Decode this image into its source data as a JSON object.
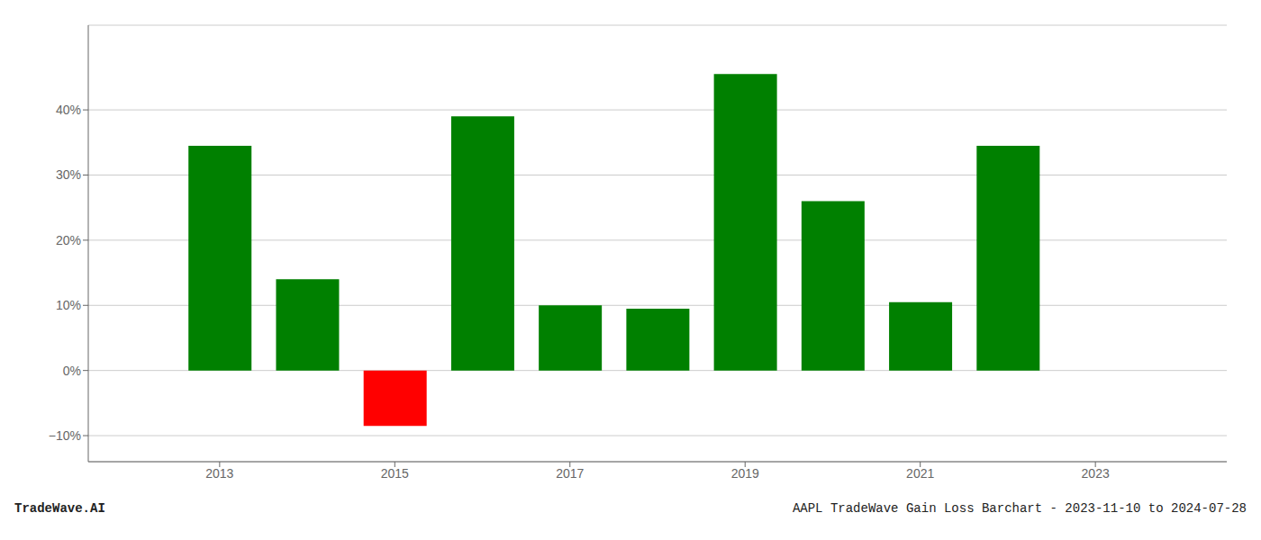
{
  "chart_data": {
    "type": "bar",
    "title": "AAPL TradeWave Gain Loss Barchart - 2023-11-10 to 2024-07-28",
    "annotations": [
      "TradeWave.AI"
    ],
    "x": [
      2013,
      2014,
      2015,
      2016,
      2017,
      2018,
      2019,
      2020,
      2021,
      2022
    ],
    "values": [
      34.5,
      14.0,
      -8.5,
      39.0,
      10.0,
      9.5,
      45.5,
      26.0,
      10.5,
      34.5
    ],
    "colors": [
      "#008000",
      "#008000",
      "#ff0000",
      "#008000",
      "#008000",
      "#008000",
      "#008000",
      "#008000",
      "#008000",
      "#008000"
    ],
    "xlim": [
      2011.5,
      2024.5
    ],
    "xticks": [
      2013,
      2015,
      2017,
      2019,
      2021,
      2023
    ],
    "ylim": [
      -14,
      53
    ],
    "yticks": [
      {
        "value": -10,
        "label": "−10%"
      },
      {
        "value": 0,
        "label": "0%"
      },
      {
        "value": 10,
        "label": "10%"
      },
      {
        "value": 20,
        "label": "20%"
      },
      {
        "value": 30,
        "label": "30%"
      },
      {
        "value": 40,
        "label": "40%"
      }
    ],
    "grid": true
  }
}
